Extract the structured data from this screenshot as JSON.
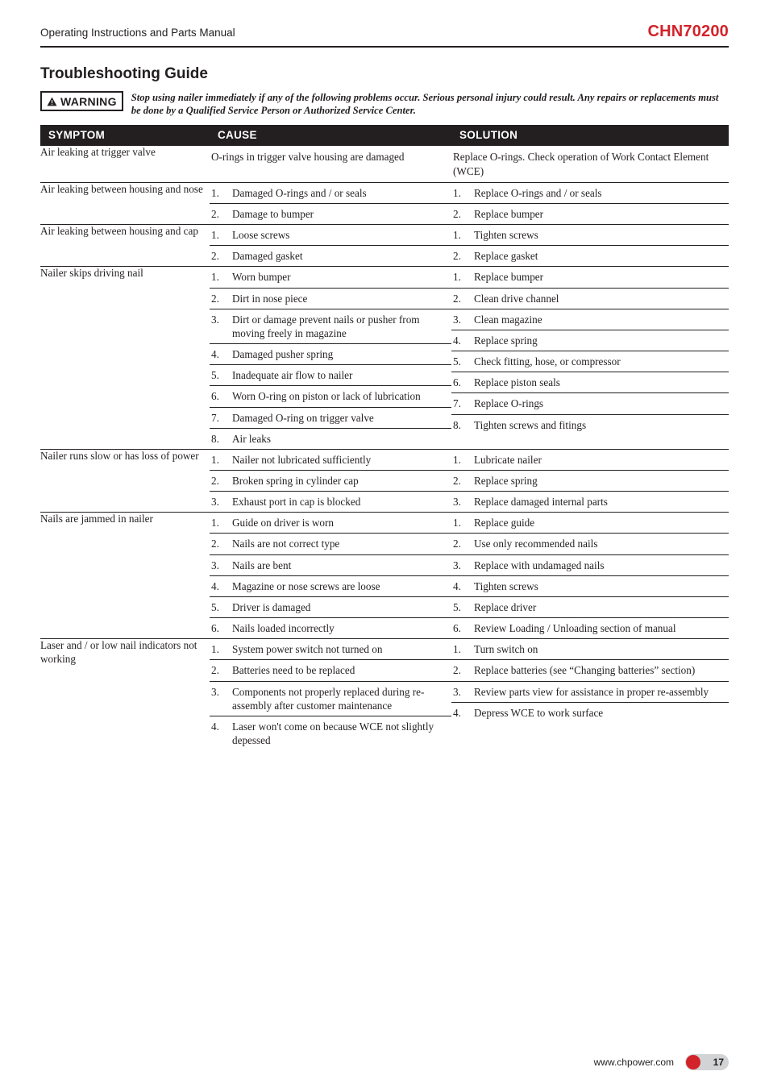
{
  "brand_color": "#d2232a",
  "header": {
    "left": "Operating Instructions and Parts Manual",
    "right": "CHN70200"
  },
  "section_title": "Troubleshooting Guide",
  "warning": {
    "badge": "WARNING",
    "text": "Stop using nailer immediately if any of the following problems occur. Serious personal injury could result. Any repairs or replacements must be done by a Qualified Service Person or Authorized Service Center."
  },
  "table": {
    "headers": {
      "symptom": "SYMPTOM",
      "cause": "CAUSE",
      "solution": "SOLUTION"
    },
    "groups": [
      {
        "symptom": "Air leaking at trigger valve",
        "rows": [
          {
            "cause": "O-rings in trigger valve housing are damaged",
            "solution": "Replace O-rings. Check operation of Work Contact Element (WCE)"
          }
        ]
      },
      {
        "symptom": "Air leaking between housing and nose",
        "rows": [
          {
            "n": "1.",
            "cause": "Damaged O-rings and / or seals",
            "solution": "Replace O-rings and / or seals"
          },
          {
            "n": "2.",
            "cause": "Damage to bumper",
            "solution": "Replace bumper"
          }
        ]
      },
      {
        "symptom": "Air leaking between housing and cap",
        "rows": [
          {
            "n": "1.",
            "cause": "Loose screws",
            "solution": "Tighten screws"
          },
          {
            "n": "2.",
            "cause": "Damaged gasket",
            "solution": "Replace gasket"
          }
        ]
      },
      {
        "symptom": "Nailer skips driving nail",
        "rows": [
          {
            "n": "1.",
            "cause": "Worn bumper",
            "solution": "Replace bumper"
          },
          {
            "n": "2.",
            "cause": "Dirt in nose piece",
            "solution": "Clean drive channel"
          },
          {
            "n": "3.",
            "cause": "Dirt or damage prevent nails or pusher from moving freely in magazine",
            "solution": "Clean magazine"
          },
          {
            "n": "4.",
            "cause": "Damaged pusher spring",
            "solution": "Replace spring"
          },
          {
            "n": "5.",
            "cause": "Inadequate air flow to nailer",
            "solution": "Check fitting, hose, or compressor"
          },
          {
            "n": "6.",
            "cause": "Worn O-ring on piston or lack of lubrication",
            "solution": "Replace piston seals"
          },
          {
            "n": "7.",
            "cause": "Damaged O-ring on trigger valve",
            "solution": "Replace O-rings"
          },
          {
            "n": "8.",
            "cause": "Air leaks",
            "solution": "Tighten screws and fitings"
          }
        ]
      },
      {
        "symptom": "Nailer runs slow or has loss of power",
        "rows": [
          {
            "n": "1.",
            "cause": "Nailer not lubricated sufficiently",
            "solution": "Lubricate nailer"
          },
          {
            "n": "2.",
            "cause": "Broken spring in cylinder cap",
            "solution": "Replace spring"
          },
          {
            "n": "3.",
            "cause": "Exhaust port in cap is blocked",
            "solution": "Replace damaged internal parts"
          }
        ]
      },
      {
        "symptom": "Nails are jammed in nailer",
        "rows": [
          {
            "n": "1.",
            "cause": "Guide on driver is worn",
            "solution": "Replace guide"
          },
          {
            "n": "2.",
            "cause": "Nails are not correct type",
            "solution": "Use only recommended nails"
          },
          {
            "n": "3.",
            "cause": "Nails are bent",
            "solution": "Replace with undamaged nails"
          },
          {
            "n": "4.",
            "cause": "Magazine or nose screws are loose",
            "solution": "Tighten screws"
          },
          {
            "n": "5.",
            "cause": "Driver is damaged",
            "solution": "Replace driver"
          },
          {
            "n": "6.",
            "cause": "Nails loaded incorrectly",
            "solution": "Review Loading / Unloading section of manual"
          }
        ]
      },
      {
        "symptom": "Laser and / or low nail indicators not working",
        "rows": [
          {
            "n": "1.",
            "cause": "System power switch not turned on",
            "solution": "Turn switch on"
          },
          {
            "n": "2.",
            "cause": "Batteries need to be replaced",
            "solution": "Replace batteries (see “Changing batteries” section)"
          },
          {
            "n": "3.",
            "cause": "Components not properly replaced during re-assembly after customer maintenance",
            "solution": "Review parts view for assistance in proper re-assembly"
          },
          {
            "n": "4.",
            "cause": "Laser won't come on because  WCE not slightly depessed",
            "solution": "Depress WCE to work surface"
          }
        ]
      }
    ]
  },
  "footer": {
    "url": "www.chpower.com",
    "page": "17"
  }
}
